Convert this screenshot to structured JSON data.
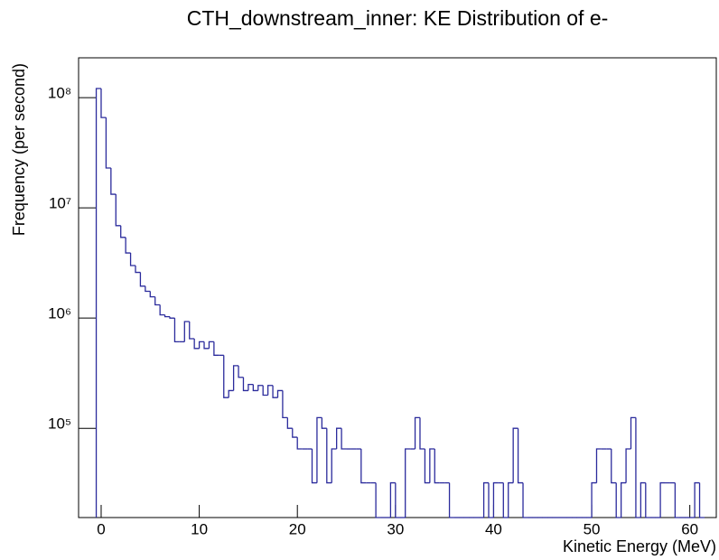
{
  "chart_data": {
    "type": "histogram",
    "title": "CTH_downstream_inner: KE Distribution of e-",
    "xlabel": "Kinetic Energy (MeV)",
    "ylabel": "Frequency (per second)",
    "color": "#2b2b9c",
    "log_y": true,
    "xlim": [
      -2.3,
      62.7
    ],
    "ylim": [
      15500,
      230000000
    ],
    "xticks": [
      0,
      10,
      20,
      30,
      40,
      50,
      60
    ],
    "yticks": [
      {
        "value": 100000,
        "label": "10⁵"
      },
      {
        "value": 1000000,
        "label": "10⁶"
      },
      {
        "value": 10000000,
        "label": "10⁷"
      },
      {
        "value": 100000000,
        "label": "10⁸"
      }
    ],
    "bins": [
      -0.5,
      0,
      0.5,
      1,
      1.5,
      2,
      2.5,
      3,
      3.5,
      4,
      4.5,
      5,
      5.5,
      6,
      6.5,
      7,
      7.5,
      8,
      8.5,
      9,
      9.5,
      10,
      10.5,
      11,
      11.5,
      12,
      12.5,
      13,
      13.5,
      14,
      14.5,
      15,
      15.5,
      16,
      16.5,
      17,
      17.5,
      18,
      18.5,
      19,
      19.5,
      20,
      20.5,
      21,
      21.5,
      22,
      22.5,
      23,
      23.5,
      24,
      24.5,
      25,
      25.5,
      26,
      26.5,
      27,
      27.5,
      28,
      28.5,
      29,
      29.5,
      30,
      30.5,
      31,
      31.5,
      32,
      32.5,
      33,
      33.5,
      34,
      34.5,
      35,
      35.5,
      36,
      36.5,
      37,
      37.5,
      38,
      38.5,
      39,
      39.5,
      40,
      40.5,
      41,
      41.5,
      42,
      42.5,
      43,
      43.5,
      44,
      44.5,
      45,
      45.5,
      46,
      46.5,
      47,
      47.5,
      48,
      48.5,
      49,
      49.5,
      50,
      50.5,
      51,
      51.5,
      52,
      52.5,
      53,
      53.5,
      54,
      54.5,
      55,
      55.5,
      56,
      56.5,
      57,
      57.5,
      58,
      58.5,
      59,
      59.5,
      60,
      60.5,
      61,
      61.5
    ],
    "values": [
      121000000,
      66000000,
      23000000,
      13300000,
      6900000,
      5400000,
      3900000,
      3000000,
      2600000,
      1950000,
      1750000,
      1560000,
      1320000,
      1070000,
      1030000,
      1000000,
      610000,
      610000,
      930000,
      650000,
      530000,
      610000,
      530000,
      610000,
      460000,
      460000,
      190000,
      220000,
      370000,
      290000,
      220000,
      250000,
      220000,
      245000,
      200000,
      245000,
      190000,
      220000,
      125000,
      100000,
      83000,
      65000,
      65000,
      65000,
      32000,
      125000,
      100000,
      32000,
      65000,
      100000,
      65000,
      65000,
      65000,
      65000,
      32000,
      32000,
      32000,
      0,
      0,
      0,
      32000,
      0,
      0,
      65000,
      65000,
      125000,
      65000,
      32000,
      65000,
      32000,
      32000,
      32000,
      0,
      0,
      0,
      0,
      0,
      0,
      0,
      32000,
      0,
      32000,
      32000,
      0,
      32000,
      100000,
      32000,
      0,
      0,
      0,
      0,
      0,
      0,
      0,
      0,
      0,
      0,
      0,
      0,
      0,
      0,
      32000,
      65000,
      65000,
      65000,
      32000,
      0,
      32000,
      65000,
      125000,
      0,
      32000,
      0,
      0,
      0,
      32000,
      32000,
      32000,
      0,
      0,
      0,
      0,
      32000,
      0
    ]
  }
}
